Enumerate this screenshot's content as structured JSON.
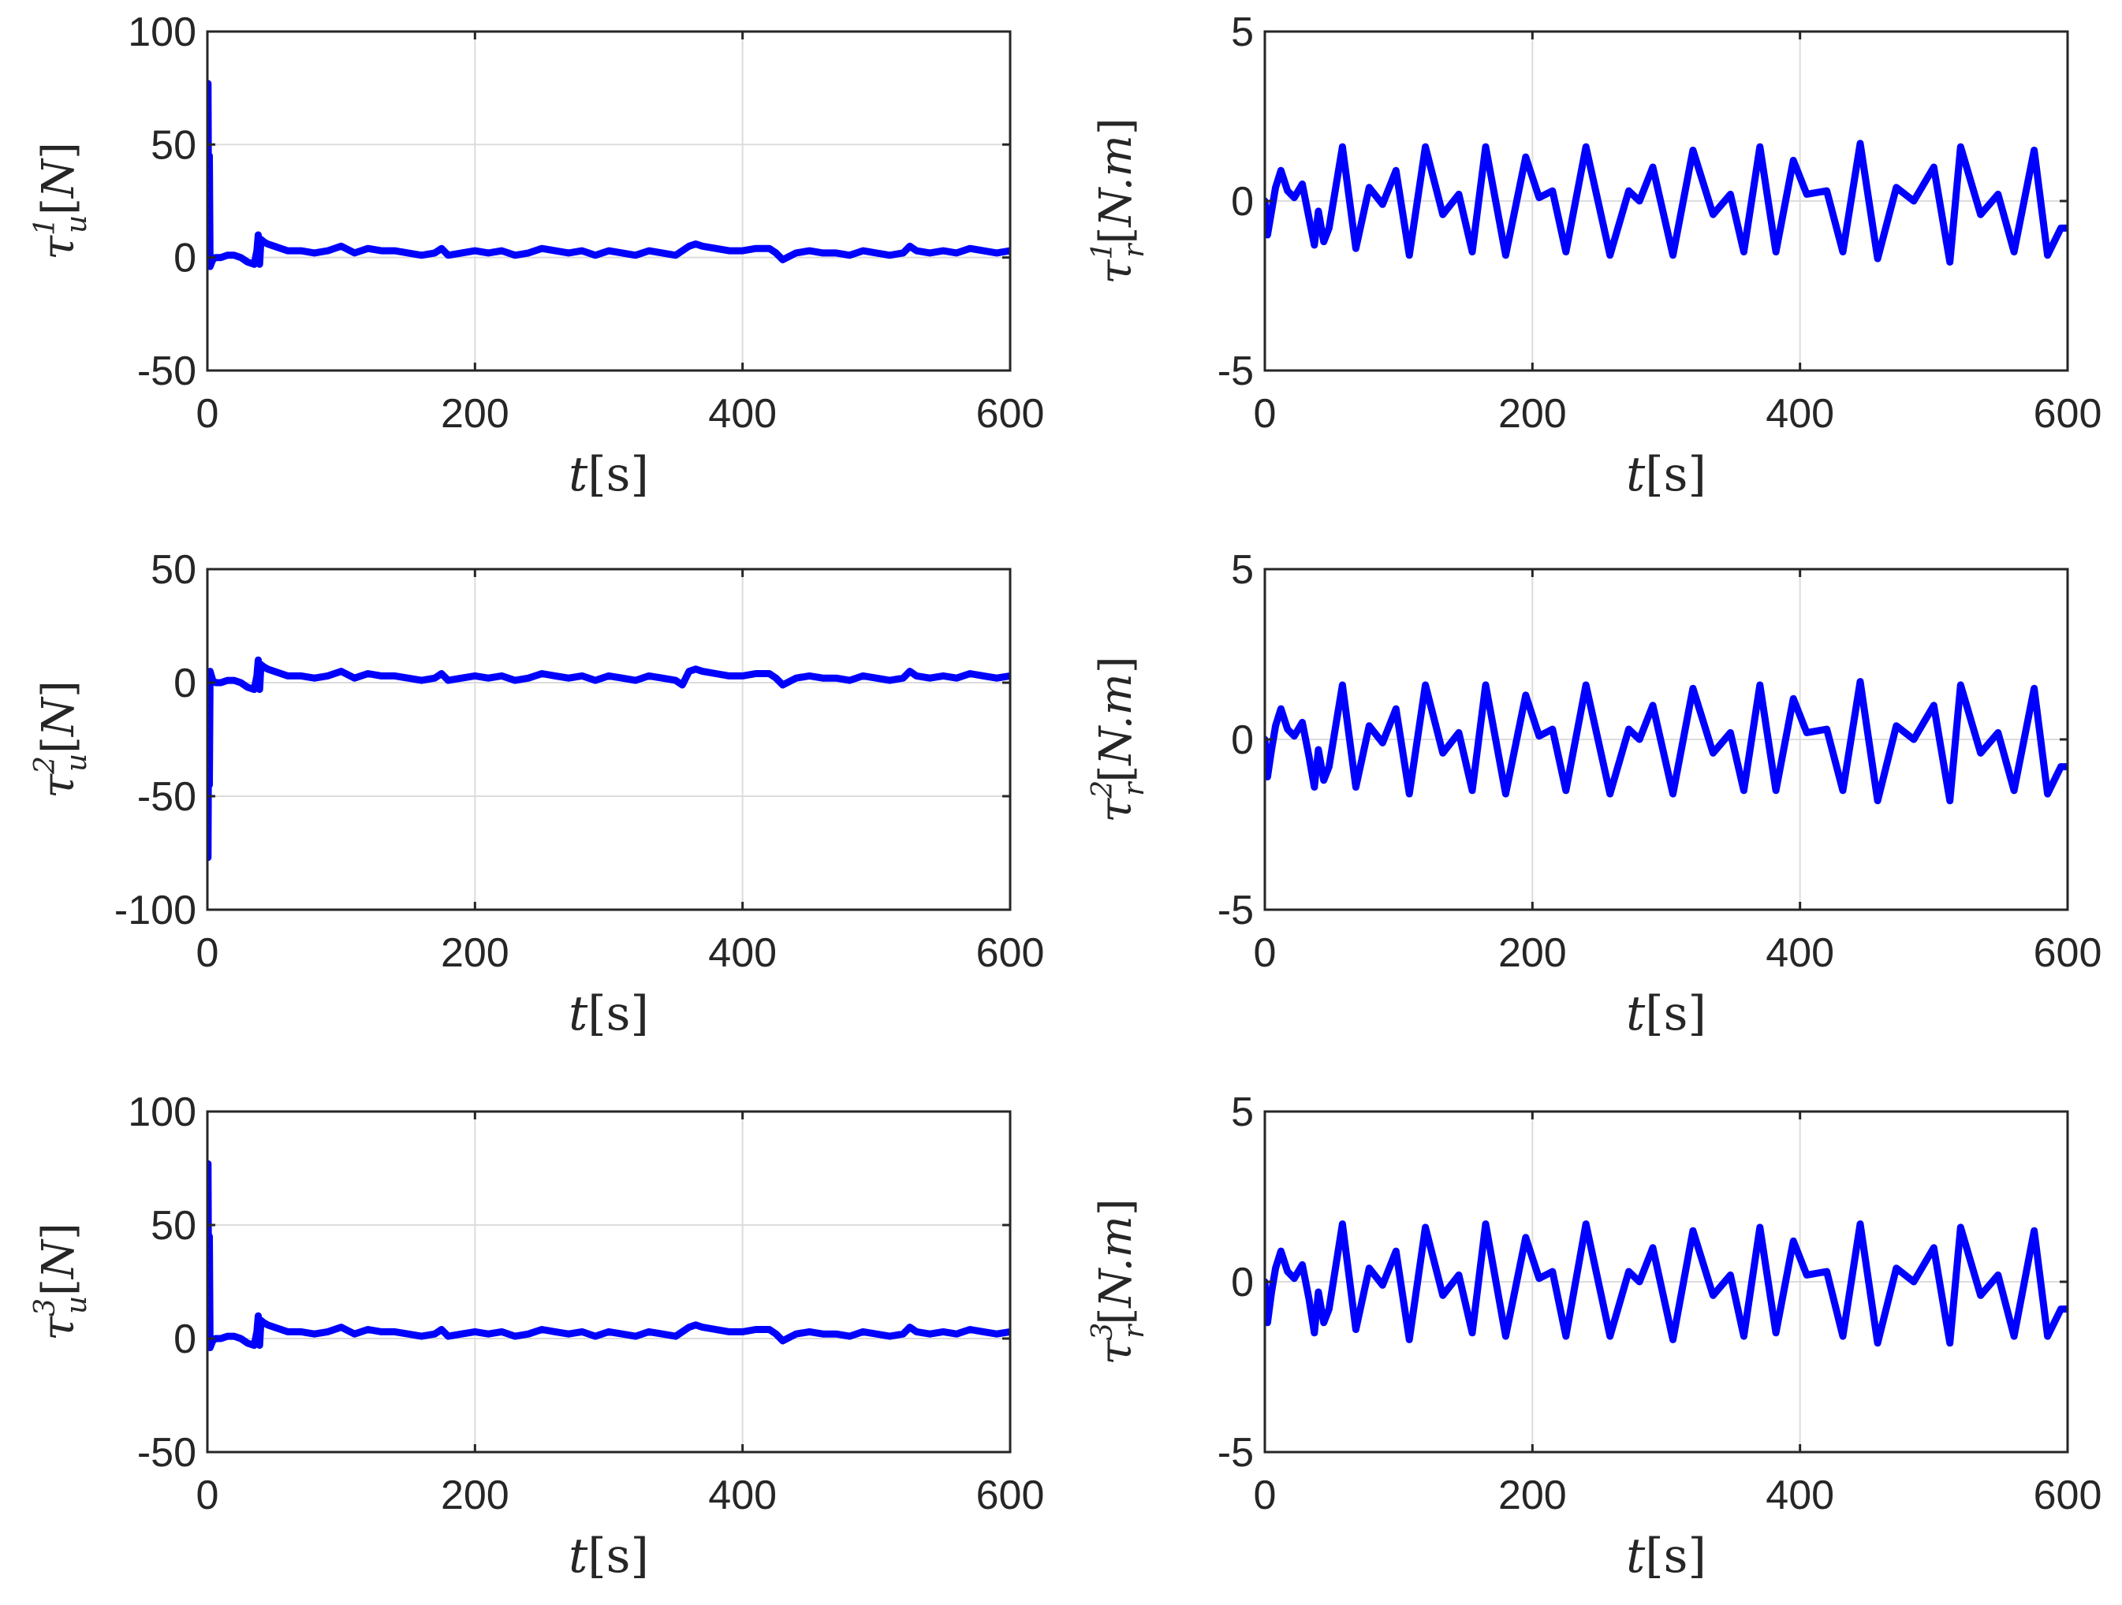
{
  "chart_data": [
    {
      "type": "line",
      "xlabel_parts": {
        "base": "t",
        "sub": "",
        "sup": "",
        "unit": "[s]"
      },
      "ylabel_parts": {
        "base": "τ",
        "sub": "u",
        "sup": "1",
        "unit": "[N]"
      },
      "xlim": [
        0,
        600
      ],
      "ylim": [
        -50,
        100
      ],
      "xticks": [
        0,
        200,
        400,
        600
      ],
      "yticks": [
        -50,
        0,
        50,
        100
      ],
      "grid": true,
      "color": "#0000ff",
      "series": [
        {
          "x": [
            0,
            0.5,
            1,
            1.5,
            2,
            4,
            6,
            10,
            15,
            20,
            25,
            30,
            35,
            37,
            38,
            39,
            40,
            42,
            45,
            50,
            55,
            60,
            70,
            80,
            90,
            100,
            110,
            120,
            130,
            140,
            150,
            160,
            170,
            175,
            180,
            190,
            200,
            210,
            220,
            230,
            240,
            250,
            260,
            270,
            280,
            290,
            300,
            310,
            320,
            330,
            340,
            350,
            360,
            365,
            370,
            380,
            390,
            400,
            410,
            420,
            425,
            430,
            440,
            450,
            460,
            470,
            480,
            490,
            500,
            510,
            520,
            525,
            530,
            540,
            550,
            560,
            570,
            580,
            590,
            600
          ],
          "y": [
            0,
            77,
            -3,
            45,
            -4,
            -1,
            0,
            0,
            1,
            1,
            0,
            -2,
            -3,
            3,
            10,
            -3,
            8,
            7,
            6,
            5,
            4,
            3,
            3,
            2,
            3,
            5,
            2,
            4,
            3,
            3,
            2,
            1,
            2,
            4,
            1,
            2,
            3,
            2,
            3,
            1,
            2,
            4,
            3,
            2,
            3,
            1,
            3,
            2,
            1,
            3,
            2,
            1,
            5,
            6,
            5,
            4,
            3,
            3,
            4,
            4,
            2,
            -1,
            2,
            3,
            2,
            2,
            1,
            3,
            2,
            1,
            2,
            5,
            3,
            2,
            3,
            2,
            4,
            3,
            2,
            3
          ]
        }
      ]
    },
    {
      "type": "line",
      "xlabel_parts": {
        "base": "t",
        "sub": "",
        "sup": "",
        "unit": "[s]"
      },
      "ylabel_parts": {
        "base": "τ",
        "sub": "r",
        "sup": "1",
        "unit": "[N.m]"
      },
      "xlim": [
        0,
        600
      ],
      "ylim": [
        -5,
        5
      ],
      "xticks": [
        0,
        200,
        400,
        600
      ],
      "yticks": [
        -5,
        0,
        5
      ],
      "grid": true,
      "color": "#0000ff",
      "series": [
        {
          "x": [
            0,
            2,
            5,
            8,
            12,
            17,
            22,
            28,
            33,
            37,
            40,
            44,
            48,
            58,
            68,
            78,
            88,
            98,
            108,
            120,
            133,
            145,
            155,
            165,
            180,
            195,
            205,
            215,
            225,
            240,
            258,
            272,
            280,
            290,
            305,
            320,
            335,
            348,
            358,
            370,
            382,
            395,
            405,
            420,
            432,
            445,
            458,
            472,
            485,
            500,
            512,
            520,
            535,
            548,
            560,
            575,
            585,
            595,
            600
          ],
          "y": [
            0,
            -1,
            -0.3,
            0.4,
            0.9,
            0.3,
            0.1,
            0.5,
            -0.5,
            -1.3,
            -0.3,
            -1.2,
            -0.8,
            1.6,
            -1.4,
            0.4,
            -0.1,
            0.9,
            -1.6,
            1.6,
            -0.4,
            0.2,
            -1.5,
            1.6,
            -1.6,
            1.3,
            0.1,
            0.3,
            -1.5,
            1.6,
            -1.6,
            0.3,
            0,
            1,
            -1.6,
            1.5,
            -0.4,
            0.2,
            -1.5,
            1.6,
            -1.5,
            1.2,
            0.2,
            0.3,
            -1.5,
            1.7,
            -1.7,
            0.4,
            0,
            1,
            -1.8,
            1.6,
            -0.4,
            0.2,
            -1.5,
            1.5,
            -1.6,
            -0.8,
            -0.8
          ]
        }
      ]
    },
    {
      "type": "line",
      "xlabel_parts": {
        "base": "t",
        "sub": "",
        "sup": "",
        "unit": "[s]"
      },
      "ylabel_parts": {
        "base": "τ",
        "sub": "u",
        "sup": "2",
        "unit": "[N]"
      },
      "xlim": [
        0,
        600
      ],
      "ylim": [
        -100,
        50
      ],
      "xticks": [
        0,
        200,
        400,
        600
      ],
      "yticks": [
        -100,
        -50,
        0,
        50
      ],
      "grid": true,
      "color": "#0000ff",
      "series": [
        {
          "x": [
            0,
            0.5,
            1,
            1.5,
            2,
            4,
            6,
            10,
            15,
            20,
            25,
            30,
            35,
            37,
            38,
            39,
            40,
            42,
            45,
            50,
            55,
            60,
            70,
            80,
            90,
            100,
            110,
            120,
            130,
            140,
            150,
            160,
            170,
            175,
            180,
            190,
            200,
            210,
            220,
            230,
            240,
            250,
            260,
            270,
            280,
            290,
            300,
            310,
            320,
            330,
            340,
            350,
            355,
            360,
            365,
            370,
            380,
            390,
            400,
            410,
            420,
            425,
            430,
            440,
            450,
            460,
            470,
            480,
            490,
            500,
            510,
            520,
            525,
            530,
            540,
            550,
            560,
            570,
            580,
            590,
            600
          ],
          "y": [
            0,
            -77,
            4,
            -45,
            5,
            1,
            0,
            0,
            1,
            1,
            0,
            -2,
            -3,
            3,
            10,
            -3,
            8,
            7,
            6,
            5,
            4,
            3,
            3,
            2,
            3,
            5,
            2,
            4,
            3,
            3,
            2,
            1,
            2,
            4,
            1,
            2,
            3,
            2,
            3,
            1,
            2,
            4,
            3,
            2,
            3,
            1,
            3,
            2,
            1,
            3,
            2,
            1,
            -1,
            5,
            6,
            5,
            4,
            3,
            3,
            4,
            4,
            2,
            -1,
            2,
            3,
            2,
            2,
            1,
            3,
            2,
            1,
            2,
            5,
            3,
            2,
            3,
            2,
            4,
            3,
            2,
            3
          ]
        }
      ]
    },
    {
      "type": "line",
      "xlabel_parts": {
        "base": "t",
        "sub": "",
        "sup": "",
        "unit": "[s]"
      },
      "ylabel_parts": {
        "base": "τ",
        "sub": "r",
        "sup": "2",
        "unit": "[N.m]"
      },
      "xlim": [
        0,
        600
      ],
      "ylim": [
        -5,
        5
      ],
      "xticks": [
        0,
        200,
        400,
        600
      ],
      "yticks": [
        -5,
        0,
        5
      ],
      "grid": true,
      "color": "#0000ff",
      "series": [
        {
          "x": [
            0,
            2,
            5,
            8,
            12,
            17,
            22,
            28,
            33,
            37,
            40,
            44,
            48,
            58,
            68,
            78,
            88,
            98,
            108,
            120,
            133,
            145,
            155,
            165,
            180,
            195,
            205,
            215,
            225,
            240,
            258,
            272,
            280,
            290,
            305,
            320,
            335,
            348,
            358,
            370,
            382,
            395,
            405,
            420,
            432,
            445,
            458,
            472,
            485,
            500,
            512,
            520,
            535,
            548,
            560,
            575,
            585,
            595,
            600
          ],
          "y": [
            0,
            -1.1,
            -0.3,
            0.4,
            0.9,
            0.3,
            0.1,
            0.5,
            -0.5,
            -1.4,
            -0.3,
            -1.2,
            -0.8,
            1.6,
            -1.4,
            0.4,
            -0.1,
            0.9,
            -1.6,
            1.6,
            -0.4,
            0.2,
            -1.5,
            1.6,
            -1.6,
            1.3,
            0.1,
            0.3,
            -1.5,
            1.6,
            -1.6,
            0.3,
            0,
            1,
            -1.6,
            1.5,
            -0.4,
            0.2,
            -1.5,
            1.6,
            -1.5,
            1.2,
            0.2,
            0.3,
            -1.5,
            1.7,
            -1.8,
            0.4,
            0,
            1,
            -1.8,
            1.6,
            -0.4,
            0.2,
            -1.5,
            1.5,
            -1.6,
            -0.8,
            -0.8
          ]
        }
      ]
    },
    {
      "type": "line",
      "xlabel_parts": {
        "base": "t",
        "sub": "",
        "sup": "",
        "unit": "[s]"
      },
      "ylabel_parts": {
        "base": "τ",
        "sub": "u",
        "sup": "3",
        "unit": "[N]"
      },
      "xlim": [
        0,
        600
      ],
      "ylim": [
        -50,
        100
      ],
      "xticks": [
        0,
        200,
        400,
        600
      ],
      "yticks": [
        -50,
        0,
        50,
        100
      ],
      "grid": true,
      "color": "#0000ff",
      "series": [
        {
          "x": [
            0,
            0.5,
            1,
            1.5,
            2,
            4,
            6,
            10,
            15,
            20,
            25,
            30,
            35,
            37,
            38,
            39,
            40,
            42,
            45,
            50,
            55,
            60,
            70,
            80,
            90,
            100,
            110,
            120,
            130,
            140,
            150,
            160,
            170,
            175,
            180,
            190,
            200,
            210,
            220,
            230,
            240,
            250,
            260,
            270,
            280,
            290,
            300,
            310,
            320,
            330,
            340,
            350,
            360,
            365,
            370,
            380,
            390,
            400,
            410,
            420,
            425,
            430,
            440,
            450,
            460,
            470,
            480,
            490,
            500,
            510,
            520,
            525,
            530,
            540,
            550,
            560,
            570,
            580,
            590,
            600
          ],
          "y": [
            0,
            77,
            -3,
            45,
            -4,
            -1,
            0,
            0,
            1,
            1,
            0,
            -2,
            -3,
            3,
            10,
            -3,
            8,
            7,
            6,
            5,
            4,
            3,
            3,
            2,
            3,
            5,
            2,
            4,
            3,
            3,
            2,
            1,
            2,
            4,
            1,
            2,
            3,
            2,
            3,
            1,
            2,
            4,
            3,
            2,
            3,
            1,
            3,
            2,
            1,
            3,
            2,
            1,
            5,
            6,
            5,
            4,
            3,
            3,
            4,
            4,
            2,
            -1,
            2,
            3,
            2,
            2,
            1,
            3,
            2,
            1,
            2,
            5,
            3,
            2,
            3,
            2,
            4,
            3,
            2,
            3
          ]
        }
      ]
    },
    {
      "type": "line",
      "xlabel_parts": {
        "base": "t",
        "sub": "",
        "sup": "",
        "unit": "[s]"
      },
      "ylabel_parts": {
        "base": "τ",
        "sub": "r",
        "sup": "3",
        "unit": "[N.m]"
      },
      "xlim": [
        0,
        600
      ],
      "ylim": [
        -5,
        5
      ],
      "xticks": [
        0,
        200,
        400,
        600
      ],
      "yticks": [
        -5,
        0,
        5
      ],
      "grid": true,
      "color": "#0000ff",
      "series": [
        {
          "x": [
            0,
            2,
            5,
            8,
            12,
            17,
            22,
            28,
            33,
            37,
            40,
            44,
            48,
            58,
            68,
            78,
            88,
            98,
            108,
            120,
            133,
            145,
            155,
            165,
            180,
            195,
            205,
            215,
            225,
            240,
            258,
            272,
            280,
            290,
            305,
            320,
            335,
            348,
            358,
            370,
            382,
            395,
            405,
            420,
            432,
            445,
            458,
            472,
            485,
            500,
            512,
            520,
            535,
            548,
            560,
            575,
            585,
            595,
            600
          ],
          "y": [
            0,
            -1.2,
            -0.3,
            0.4,
            0.9,
            0.3,
            0.1,
            0.5,
            -0.5,
            -1.5,
            -0.3,
            -1.2,
            -0.8,
            1.7,
            -1.4,
            0.4,
            -0.1,
            0.9,
            -1.7,
            1.6,
            -0.4,
            0.2,
            -1.5,
            1.7,
            -1.6,
            1.3,
            0.1,
            0.3,
            -1.6,
            1.7,
            -1.6,
            0.3,
            0,
            1,
            -1.7,
            1.5,
            -0.4,
            0.2,
            -1.6,
            1.6,
            -1.5,
            1.2,
            0.2,
            0.3,
            -1.6,
            1.7,
            -1.8,
            0.4,
            0,
            1,
            -1.8,
            1.6,
            -0.4,
            0.2,
            -1.6,
            1.5,
            -1.6,
            -0.8,
            -0.8
          ]
        }
      ]
    }
  ]
}
